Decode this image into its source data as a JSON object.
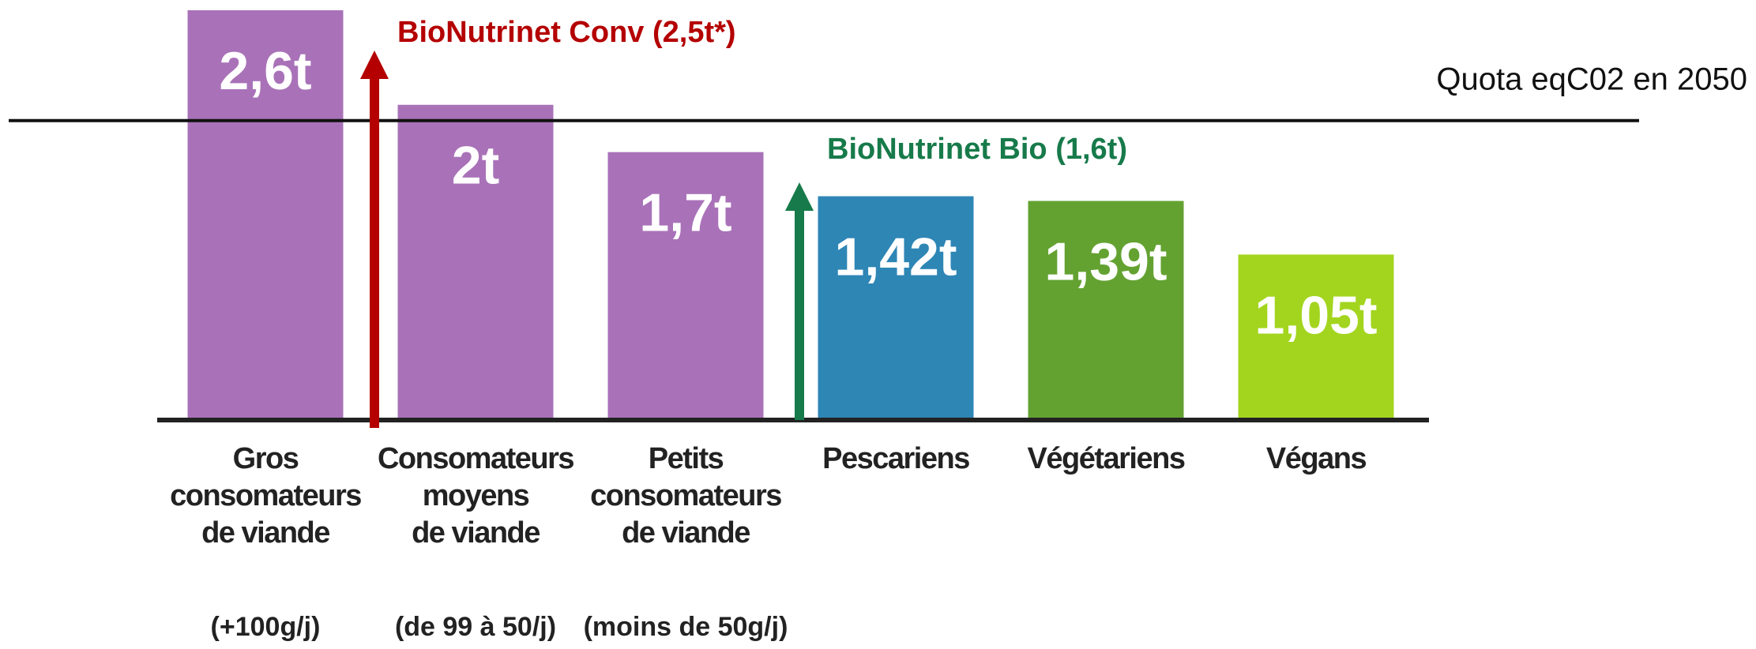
{
  "chart_data": {
    "type": "bar",
    "categories": [
      "Gros\nconsomateurs\nde viande",
      "Consomateurs\nmoyens\nde viande",
      "Petits\nconsomateurs\nde viande",
      "Pescariens",
      "Végétariens",
      "Végans"
    ],
    "subcategories": [
      "(+100g/j)",
      "(de 99 à 50/j)",
      "(moins de 50g/j)",
      null,
      null,
      null
    ],
    "values": [
      2.6,
      2,
      1.7,
      1.42,
      1.39,
      1.05
    ],
    "value_labels": [
      "2,6t",
      "2t",
      "1,7t",
      "1,42t",
      "1,39t",
      "1,05t"
    ],
    "colors": [
      "#a972b8",
      "#a972b8",
      "#a972b8",
      "#2e86b5",
      "#63a231",
      "#a3d51f"
    ],
    "ylim": [
      0,
      2.65
    ],
    "reference_line": {
      "label": "Quota eqC02 en 2050",
      "value": 1.9
    },
    "annotations": [
      {
        "text": "BioNutrinet Conv (2,5t*)",
        "color": "#b40000"
      },
      {
        "text": "BioNutrinet Bio (1,6t)",
        "color": "#177a4a"
      }
    ]
  }
}
